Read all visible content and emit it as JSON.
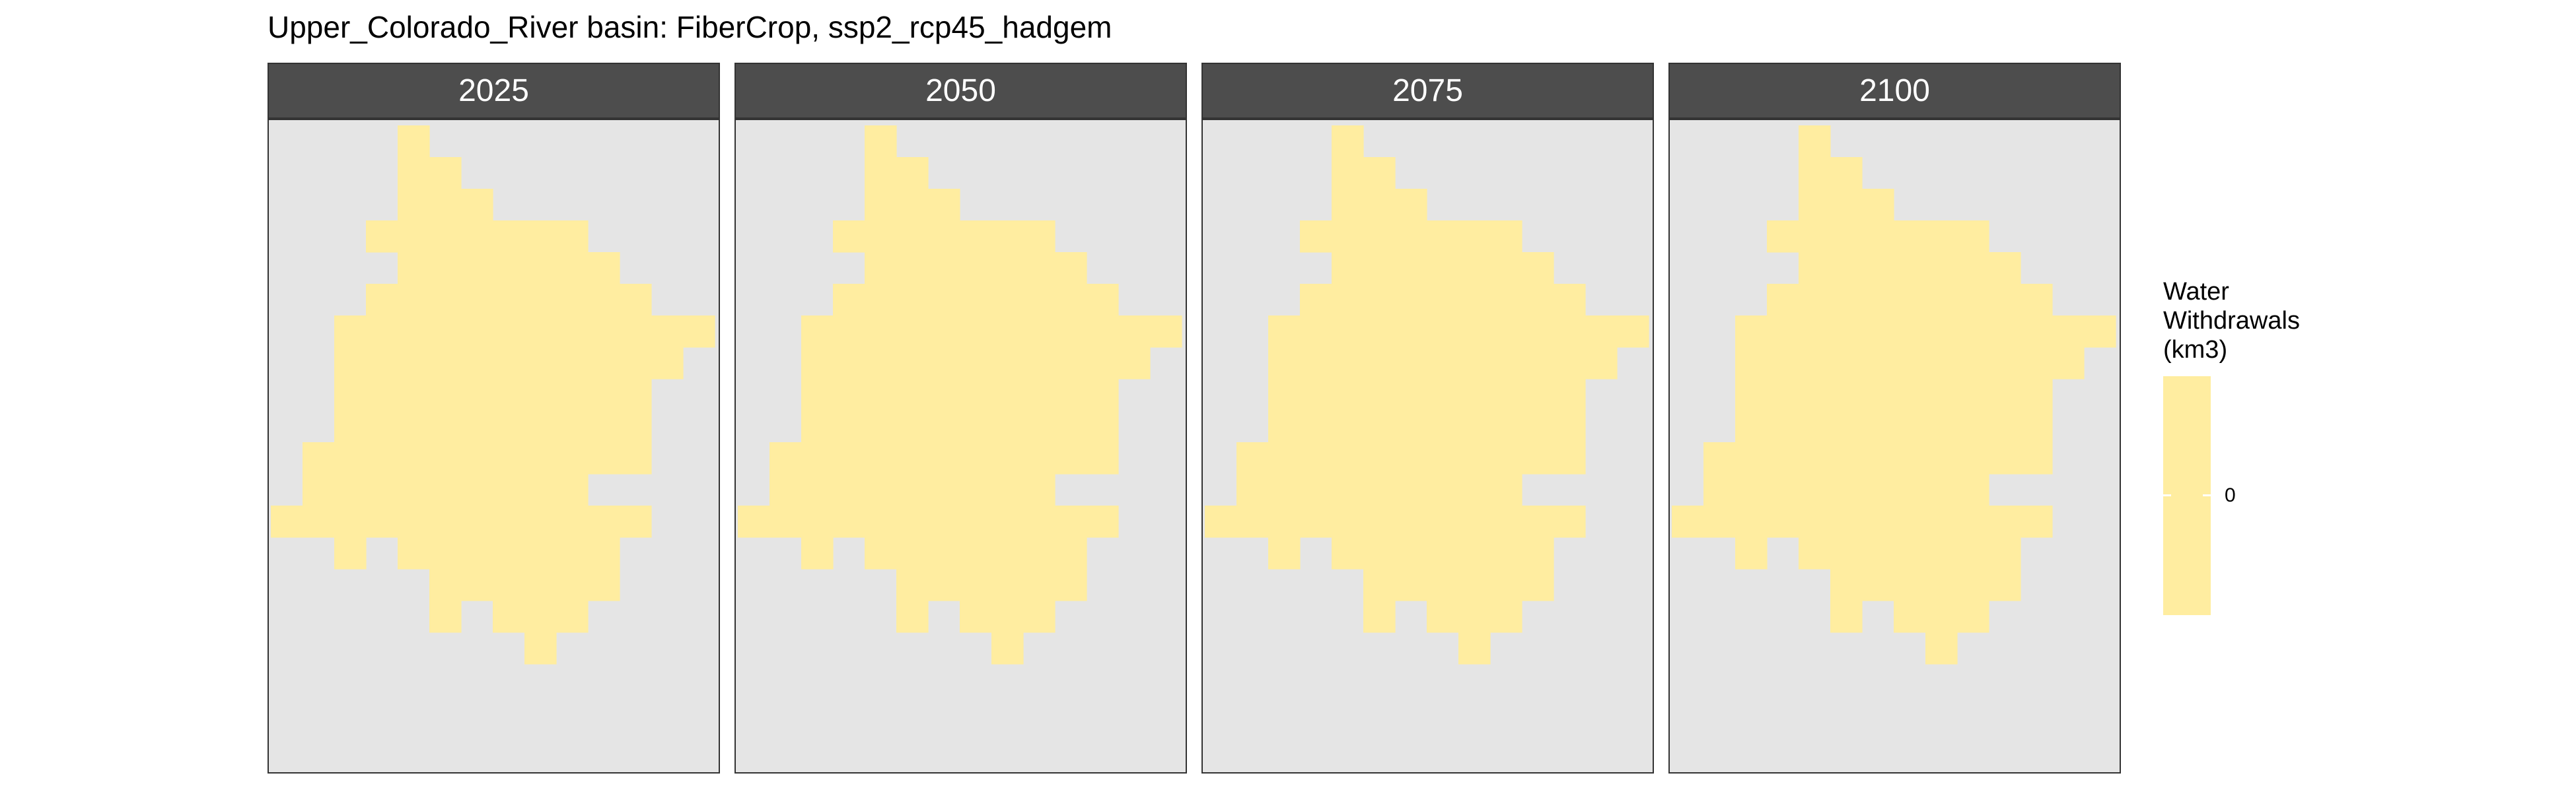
{
  "title": "Upper_Colorado_River basin: FiberCrop, ssp2_rcp45_hadgem",
  "chart_data": {
    "type": "heatmap",
    "title": "Upper_Colorado_River basin: FiberCrop, ssp2_rcp45_hadgem",
    "facets": [
      "2025",
      "2050",
      "2075",
      "2100"
    ],
    "legend": {
      "title_lines": [
        "Water",
        "Withdrawals",
        "(km3)"
      ],
      "tick_labels": [
        "0"
      ],
      "placement": "right"
    },
    "fill_color": "#FFEDA0",
    "panel_background": "#E5E5E5",
    "value_all_cells": 0,
    "grid_rows": [
      {
        "row": 0,
        "start": 4,
        "end": 4
      },
      {
        "row": 1,
        "start": 4,
        "end": 5
      },
      {
        "row": 2,
        "start": 4,
        "end": 6
      },
      {
        "row": 3,
        "start": 3,
        "end": 9
      },
      {
        "row": 4,
        "start": 4,
        "end": 10
      },
      {
        "row": 5,
        "start": 3,
        "end": 11
      },
      {
        "row": 6,
        "start": 2,
        "end": 13
      },
      {
        "row": 7,
        "start": 2,
        "end": 12
      },
      {
        "row": 8,
        "start": 2,
        "end": 11
      },
      {
        "row": 9,
        "start": 2,
        "end": 11
      },
      {
        "row": 10,
        "start": 1,
        "end": 11
      },
      {
        "row": 11,
        "start": 1,
        "end": 9
      },
      {
        "row": 12,
        "start": 0,
        "end": 11
      },
      {
        "row": 13,
        "start": 2,
        "end": 2
      },
      {
        "row": 13,
        "start": 4,
        "end": 10
      },
      {
        "row": 14,
        "start": 5,
        "end": 10
      },
      {
        "row": 15,
        "start": 5,
        "end": 5
      },
      {
        "row": 15,
        "start": 7,
        "end": 9
      },
      {
        "row": 16,
        "start": 8,
        "end": 8
      }
    ]
  }
}
